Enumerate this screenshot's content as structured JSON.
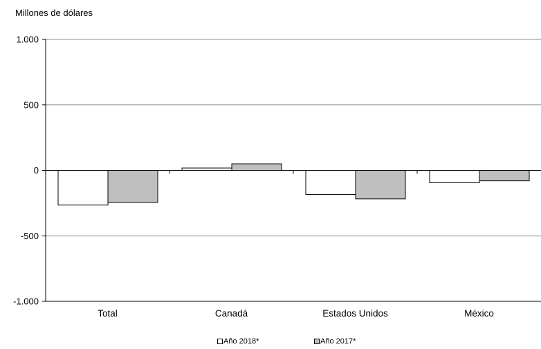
{
  "chart_data": {
    "type": "bar",
    "unit_label": "Millones  de dólares",
    "categories": [
      "Total",
      "Canadá",
      "Estados Unidos",
      "México"
    ],
    "series": [
      {
        "name": "Año 2018*",
        "values": [
          -265,
          18,
          -185,
          -95
        ],
        "color": "#ffffff"
      },
      {
        "name": "Año 2017*",
        "values": [
          -245,
          50,
          -218,
          -80
        ],
        "color": "#bfbfbf"
      }
    ],
    "ylim": [
      -1000,
      1000
    ],
    "yticks": [
      1000,
      500,
      0,
      -500,
      -1000
    ],
    "ytick_labels": [
      "1.000",
      "500",
      "0",
      "-500",
      "-1.000"
    ],
    "grid": true,
    "legend_position": "bottom"
  }
}
